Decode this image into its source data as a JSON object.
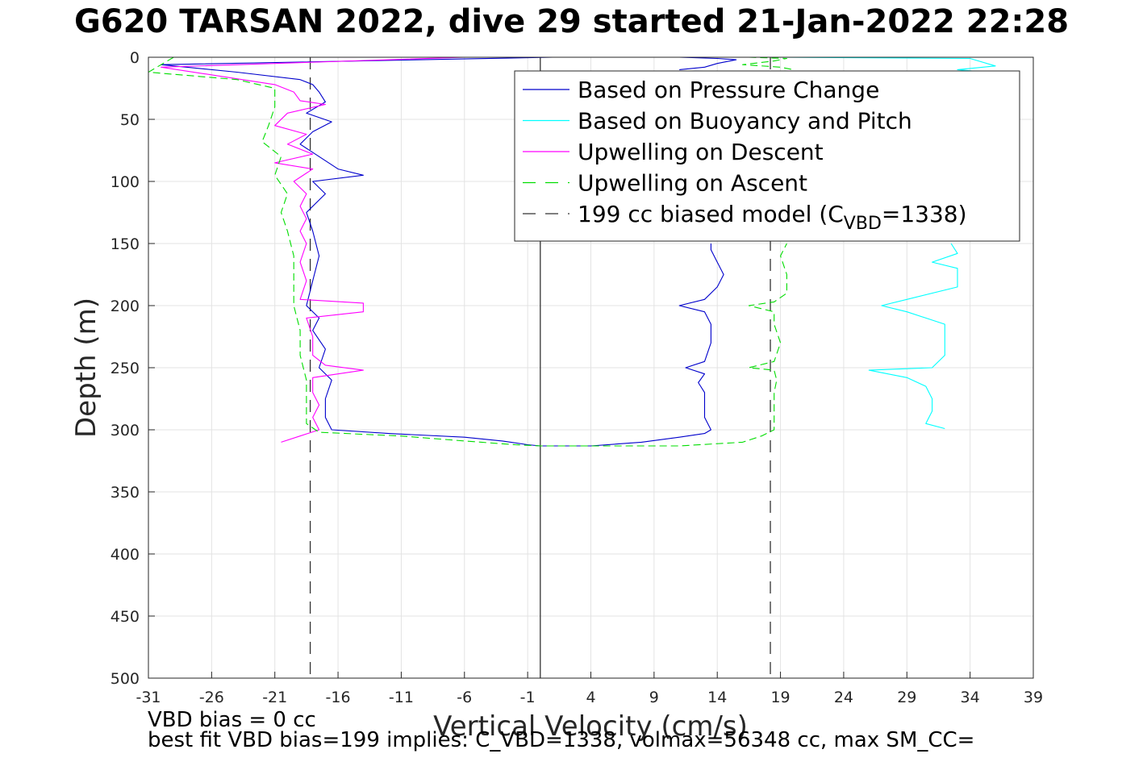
{
  "title": "G620 TARSAN 2022, dive 29 started 21-Jan-2022 22:28",
  "footer": {
    "line1": "VBD bias = 0 cc",
    "line2": "best fit VBD bias=199 implies: C_VBD=1338, volmax=56348 cc, max SM_CC="
  },
  "colors": {
    "pressure": "#0000cc",
    "buoyancy": "#00ffff",
    "descent": "#ff00ff",
    "ascent": "#00dd00",
    "model": "#333333"
  },
  "chart_data": {
    "type": "line",
    "xlabel": "Vertical Velocity (cm/s)",
    "ylabel": "Depth (m)",
    "xlim": [
      -31,
      39
    ],
    "ylim": [
      0,
      500
    ],
    "y_reversed": true,
    "xticks": [
      -31,
      -26,
      -21,
      -16,
      -11,
      -6,
      -1,
      4,
      9,
      14,
      19,
      24,
      29,
      34,
      39
    ],
    "yticks": [
      0,
      50,
      100,
      150,
      200,
      250,
      300,
      350,
      400,
      450,
      500
    ],
    "grid": true,
    "legend_location": "top-right",
    "legend": [
      {
        "label": "Based on Pressure Change",
        "style": "solid",
        "color": "#0000cc"
      },
      {
        "label": "Based on Buoyancy and Pitch",
        "style": "solid",
        "color": "#00ffff"
      },
      {
        "label": "Upwelling on Descent",
        "style": "solid",
        "color": "#ff00ff"
      },
      {
        "label": "Upwelling on Ascent",
        "style": "dashed",
        "color": "#00dd00"
      },
      {
        "label": "199 cc biased model (C",
        "sub": "VBD",
        "after": "=1338)",
        "style": "dashed",
        "color": "#333333"
      }
    ],
    "reference_lines": [
      {
        "x": -18.2,
        "style": "dashed"
      },
      {
        "x": 0,
        "style": "solid"
      },
      {
        "x": 18.2,
        "style": "dashed"
      }
    ],
    "series": [
      {
        "name": "Based on Pressure Change",
        "color": "#0000cc",
        "points": [
          [
            -1,
            0
          ],
          [
            1,
            0
          ],
          [
            -30,
            6
          ],
          [
            -24,
            12
          ],
          [
            -19,
            18
          ],
          [
            -18,
            22
          ],
          [
            -17.5,
            28
          ],
          [
            -17,
            36
          ],
          [
            -18.5,
            45
          ],
          [
            -16.5,
            52
          ],
          [
            -18,
            60
          ],
          [
            -19,
            70
          ],
          [
            -17.5,
            80
          ],
          [
            -16,
            90
          ],
          [
            -14,
            95
          ],
          [
            -18,
            100
          ],
          [
            -17,
            110
          ],
          [
            -18.5,
            125
          ],
          [
            -18,
            140
          ],
          [
            -17.5,
            160
          ],
          [
            -18,
            180
          ],
          [
            -18.5,
            200
          ],
          [
            -17.5,
            210
          ],
          [
            -18,
            220
          ],
          [
            -17,
            235
          ],
          [
            -17.5,
            250
          ],
          [
            -16.5,
            260
          ],
          [
            -17,
            275
          ],
          [
            -17,
            290
          ],
          [
            -16.5,
            300
          ],
          [
            -12,
            303
          ],
          [
            -6,
            306
          ],
          [
            -3,
            309
          ],
          [
            -1,
            312
          ],
          [
            0,
            313
          ],
          [
            4,
            313
          ],
          [
            8,
            310
          ],
          [
            11,
            306
          ],
          [
            13,
            303
          ],
          [
            13.5,
            300
          ],
          [
            13,
            290
          ],
          [
            13,
            280
          ],
          [
            13,
            270
          ],
          [
            12.5,
            262
          ],
          [
            13,
            255
          ],
          [
            11.5,
            250
          ],
          [
            13,
            245
          ],
          [
            13.5,
            230
          ],
          [
            13.5,
            215
          ],
          [
            13,
            205
          ],
          [
            11,
            200
          ],
          [
            13,
            195
          ],
          [
            14,
            185
          ],
          [
            14.5,
            175
          ],
          [
            14,
            165
          ],
          [
            13.5,
            155
          ],
          [
            13.5,
            150
          ]
        ]
      },
      {
        "name": "Based on Buoyancy and Pitch",
        "color": "#00ffff",
        "points": [
          [
            32,
            299
          ],
          [
            30.5,
            295
          ],
          [
            31,
            285
          ],
          [
            31,
            275
          ],
          [
            30.5,
            265
          ],
          [
            29,
            258
          ],
          [
            26,
            252
          ],
          [
            31,
            250
          ],
          [
            32,
            240
          ],
          [
            32,
            225
          ],
          [
            32,
            215
          ],
          [
            29,
            205
          ],
          [
            27,
            200
          ],
          [
            29,
            195
          ],
          [
            33,
            185
          ],
          [
            33,
            170
          ],
          [
            31,
            165
          ],
          [
            33,
            158
          ],
          [
            32.5,
            150
          ]
        ]
      },
      {
        "name": "Upwelling on Descent",
        "color": "#ff00ff",
        "points": [
          [
            -6,
            0
          ],
          [
            -30,
            8
          ],
          [
            -21,
            22
          ],
          [
            -19.5,
            28
          ],
          [
            -19,
            35
          ],
          [
            -17,
            38
          ],
          [
            -20,
            45
          ],
          [
            -21,
            55
          ],
          [
            -18.5,
            62
          ],
          [
            -20,
            70
          ],
          [
            -18,
            78
          ],
          [
            -21,
            85
          ],
          [
            -18,
            90
          ],
          [
            -19.5,
            100
          ],
          [
            -18.5,
            110
          ],
          [
            -19,
            120
          ],
          [
            -18.5,
            130
          ],
          [
            -19,
            140
          ],
          [
            -18.5,
            150
          ],
          [
            -19,
            165
          ],
          [
            -18.5,
            180
          ],
          [
            -19,
            195
          ],
          [
            -14,
            198
          ],
          [
            -14,
            205
          ],
          [
            -18.5,
            210
          ],
          [
            -18,
            225
          ],
          [
            -18,
            240
          ],
          [
            -17,
            248
          ],
          [
            -14,
            252
          ],
          [
            -18,
            258
          ],
          [
            -18,
            270
          ],
          [
            -17.5,
            280
          ],
          [
            -18,
            290
          ],
          [
            -17.5,
            300
          ],
          [
            -19,
            305
          ],
          [
            -20.5,
            310
          ]
        ]
      },
      {
        "name": "Upwelling on Ascent",
        "color": "#00dd00",
        "points": [
          [
            -29,
            0
          ],
          [
            -31,
            12
          ],
          [
            -24,
            18
          ],
          [
            -21,
            25
          ],
          [
            -21,
            40
          ],
          [
            -21.5,
            55
          ],
          [
            -22,
            68
          ],
          [
            -20.5,
            80
          ],
          [
            -21,
            95
          ],
          [
            -20,
            110
          ],
          [
            -20.5,
            125
          ],
          [
            -20,
            140
          ],
          [
            -19.5,
            160
          ],
          [
            -19.5,
            180
          ],
          [
            -19.5,
            200
          ],
          [
            -19,
            220
          ],
          [
            -19,
            240
          ],
          [
            -18.5,
            260
          ],
          [
            -18.5,
            280
          ],
          [
            -18.5,
            295
          ],
          [
            -17.5,
            302
          ],
          [
            -11,
            305
          ],
          [
            -6,
            309
          ],
          [
            -2,
            312
          ],
          [
            0,
            313
          ],
          [
            11,
            313
          ],
          [
            16,
            310
          ],
          [
            17.5,
            305
          ],
          [
            18.5,
            300
          ],
          [
            18.5,
            285
          ],
          [
            18.5,
            270
          ],
          [
            18.7,
            260
          ],
          [
            18.5,
            252
          ],
          [
            16.5,
            250
          ],
          [
            18.5,
            245
          ],
          [
            19,
            230
          ],
          [
            18.5,
            215
          ],
          [
            18.5,
            205
          ],
          [
            16.5,
            200
          ],
          [
            18.5,
            197
          ],
          [
            19.5,
            190
          ],
          [
            19.5,
            175
          ],
          [
            19,
            160
          ],
          [
            19.5,
            150
          ]
        ]
      },
      {
        "name": "Upwelling on Ascent",
        "color": "#00dd00",
        "points": [
          [
            16.5,
            0
          ],
          [
            19.5,
            1
          ],
          [
            18.5,
            3
          ],
          [
            16,
            6
          ],
          [
            19,
            8
          ],
          [
            20,
            10
          ]
        ]
      },
      {
        "name": "Based on Pressure Change",
        "color": "#0000cc",
        "points": [
          [
            11,
            0
          ],
          [
            14,
            1
          ],
          [
            15.5,
            2
          ],
          [
            14,
            5
          ],
          [
            13,
            8
          ],
          [
            11,
            10
          ]
        ]
      },
      {
        "name": "Based on Buoyancy and Pitch",
        "color": "#00ffff",
        "points": [
          [
            19,
            0
          ],
          [
            34,
            1
          ],
          [
            36,
            7
          ],
          [
            33,
            10
          ],
          [
            37.5,
            14
          ]
        ]
      }
    ]
  }
}
